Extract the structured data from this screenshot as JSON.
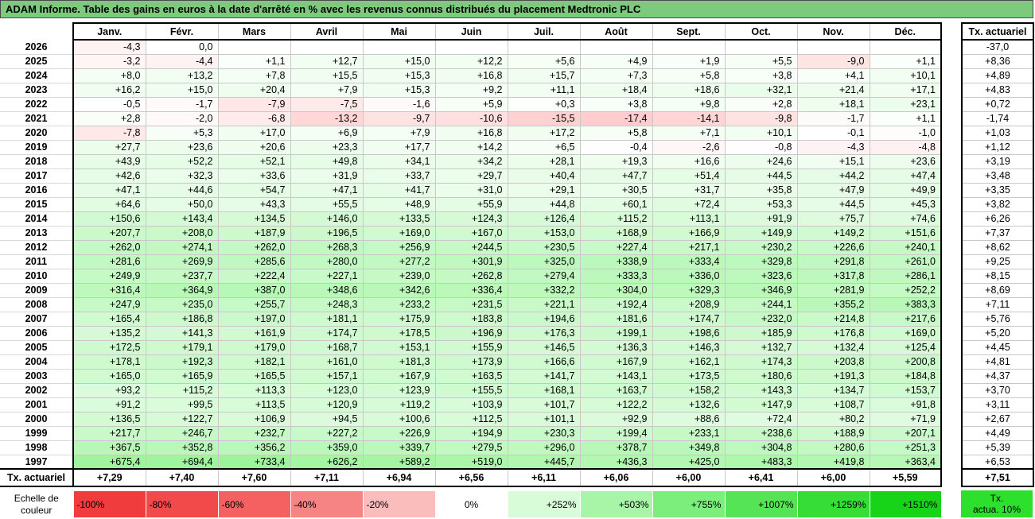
{
  "title": "ADAM Informe. Table des gains en euros à la date d'arrêté en % avec les revenus connus distribués du placement Medtronic PLC",
  "months": [
    "Janv.",
    "Févr.",
    "Mars",
    "Avril",
    "Mai",
    "Juin",
    "Juil.",
    "Août",
    "Sept.",
    "Oct.",
    "Nov.",
    "Déc."
  ],
  "side_header": "Tx. actuariel",
  "rows": [
    {
      "year": "2026",
      "values": [
        "-4,3",
        "0,0",
        "",
        "",
        "",
        "",
        "",
        "",
        "",
        "",
        "",
        ""
      ],
      "tx": "-37,0"
    },
    {
      "year": "2025",
      "values": [
        "-3,2",
        "-4,4",
        "+1,1",
        "+12,7",
        "+15,0",
        "+12,2",
        "+5,6",
        "+4,9",
        "+1,9",
        "+5,5",
        "-9,0",
        "+1,1"
      ],
      "tx": "+8,36"
    },
    {
      "year": "2024",
      "values": [
        "+8,0",
        "+13,2",
        "+7,8",
        "+15,5",
        "+15,3",
        "+16,8",
        "+15,7",
        "+7,3",
        "+5,8",
        "+3,8",
        "+4,1",
        "+10,1"
      ],
      "tx": "+4,89"
    },
    {
      "year": "2023",
      "values": [
        "+16,2",
        "+15,0",
        "+20,4",
        "+7,9",
        "+15,3",
        "+9,2",
        "+11,1",
        "+18,4",
        "+18,6",
        "+32,1",
        "+21,4",
        "+17,1"
      ],
      "tx": "+4,83"
    },
    {
      "year": "2022",
      "values": [
        "-0,5",
        "-1,7",
        "-7,9",
        "-7,5",
        "-1,6",
        "+5,9",
        "+0,3",
        "+3,8",
        "+9,8",
        "+2,8",
        "+18,1",
        "+23,1"
      ],
      "tx": "+0,72"
    },
    {
      "year": "2021",
      "values": [
        "+2,8",
        "-2,0",
        "-6,8",
        "-13,2",
        "-9,7",
        "-10,6",
        "-15,5",
        "-17,4",
        "-14,1",
        "-9,8",
        "-1,7",
        "+1,1"
      ],
      "tx": "-1,74"
    },
    {
      "year": "2020",
      "values": [
        "-7,8",
        "+5,3",
        "+17,0",
        "+6,9",
        "+7,9",
        "+16,8",
        "+17,2",
        "+5,8",
        "+7,1",
        "+10,1",
        "-0,1",
        "-1,0"
      ],
      "tx": "+1,03"
    },
    {
      "year": "2019",
      "values": [
        "+27,7",
        "+23,6",
        "+20,6",
        "+23,3",
        "+17,7",
        "+14,2",
        "+6,5",
        "-0,4",
        "-2,6",
        "-0,8",
        "-4,3",
        "-4,8"
      ],
      "tx": "+1,12"
    },
    {
      "year": "2018",
      "values": [
        "+43,9",
        "+52,2",
        "+52,1",
        "+49,8",
        "+34,1",
        "+34,2",
        "+28,1",
        "+19,3",
        "+16,6",
        "+24,6",
        "+15,1",
        "+23,6"
      ],
      "tx": "+3,19"
    },
    {
      "year": "2017",
      "values": [
        "+42,6",
        "+32,3",
        "+33,6",
        "+31,9",
        "+33,7",
        "+29,7",
        "+40,4",
        "+47,7",
        "+51,4",
        "+44,5",
        "+44,2",
        "+47,4"
      ],
      "tx": "+3,48"
    },
    {
      "year": "2016",
      "values": [
        "+47,1",
        "+44,6",
        "+54,7",
        "+47,1",
        "+41,7",
        "+31,0",
        "+29,1",
        "+30,5",
        "+31,7",
        "+35,8",
        "+47,9",
        "+49,9"
      ],
      "tx": "+3,35"
    },
    {
      "year": "2015",
      "values": [
        "+64,6",
        "+50,0",
        "+43,3",
        "+55,5",
        "+48,9",
        "+55,9",
        "+44,8",
        "+60,1",
        "+72,4",
        "+53,3",
        "+44,5",
        "+45,3"
      ],
      "tx": "+3,82"
    },
    {
      "year": "2014",
      "values": [
        "+150,6",
        "+143,4",
        "+134,5",
        "+146,0",
        "+133,5",
        "+124,3",
        "+126,4",
        "+115,2",
        "+113,1",
        "+91,9",
        "+75,7",
        "+74,6"
      ],
      "tx": "+6,26"
    },
    {
      "year": "2013",
      "values": [
        "+207,7",
        "+208,0",
        "+187,9",
        "+196,5",
        "+169,0",
        "+167,0",
        "+153,0",
        "+168,9",
        "+166,9",
        "+149,9",
        "+149,2",
        "+151,6"
      ],
      "tx": "+7,37"
    },
    {
      "year": "2012",
      "values": [
        "+262,0",
        "+274,1",
        "+262,0",
        "+268,3",
        "+256,9",
        "+244,5",
        "+230,5",
        "+227,4",
        "+217,1",
        "+230,2",
        "+226,6",
        "+240,1"
      ],
      "tx": "+8,62"
    },
    {
      "year": "2011",
      "values": [
        "+281,6",
        "+269,9",
        "+285,6",
        "+280,0",
        "+277,2",
        "+301,9",
        "+325,0",
        "+338,9",
        "+333,4",
        "+329,8",
        "+291,8",
        "+261,0"
      ],
      "tx": "+9,25"
    },
    {
      "year": "2010",
      "values": [
        "+249,9",
        "+237,7",
        "+222,4",
        "+227,1",
        "+239,0",
        "+262,8",
        "+279,4",
        "+333,3",
        "+336,0",
        "+323,6",
        "+317,8",
        "+286,1"
      ],
      "tx": "+8,15"
    },
    {
      "year": "2009",
      "values": [
        "+316,4",
        "+364,9",
        "+387,0",
        "+348,6",
        "+342,6",
        "+336,4",
        "+332,2",
        "+304,0",
        "+329,3",
        "+346,9",
        "+281,9",
        "+252,2"
      ],
      "tx": "+8,69"
    },
    {
      "year": "2008",
      "values": [
        "+247,9",
        "+235,0",
        "+255,7",
        "+248,3",
        "+233,2",
        "+231,5",
        "+221,1",
        "+192,4",
        "+208,9",
        "+244,1",
        "+355,2",
        "+383,3"
      ],
      "tx": "+7,11"
    },
    {
      "year": "2007",
      "values": [
        "+165,4",
        "+186,8",
        "+197,0",
        "+181,1",
        "+175,9",
        "+183,8",
        "+194,6",
        "+181,6",
        "+174,7",
        "+232,0",
        "+214,8",
        "+217,6"
      ],
      "tx": "+5,76"
    },
    {
      "year": "2006",
      "values": [
        "+135,2",
        "+141,3",
        "+161,9",
        "+174,7",
        "+178,5",
        "+196,9",
        "+176,3",
        "+199,1",
        "+198,6",
        "+185,9",
        "+176,8",
        "+169,0"
      ],
      "tx": "+5,20"
    },
    {
      "year": "2005",
      "values": [
        "+172,5",
        "+179,1",
        "+179,0",
        "+168,7",
        "+153,1",
        "+155,9",
        "+146,5",
        "+136,3",
        "+146,3",
        "+132,7",
        "+132,4",
        "+125,4"
      ],
      "tx": "+4,45"
    },
    {
      "year": "2004",
      "values": [
        "+178,1",
        "+192,3",
        "+182,1",
        "+161,0",
        "+181,3",
        "+173,9",
        "+166,6",
        "+167,9",
        "+162,1",
        "+174,3",
        "+203,8",
        "+200,8"
      ],
      "tx": "+4,81"
    },
    {
      "year": "2003",
      "values": [
        "+165,0",
        "+165,9",
        "+165,5",
        "+157,1",
        "+167,9",
        "+163,5",
        "+141,7",
        "+143,1",
        "+173,5",
        "+180,6",
        "+191,3",
        "+184,8"
      ],
      "tx": "+4,37"
    },
    {
      "year": "2002",
      "values": [
        "+93,2",
        "+115,2",
        "+113,3",
        "+123,0",
        "+123,9",
        "+155,5",
        "+168,1",
        "+163,7",
        "+158,2",
        "+143,3",
        "+134,7",
        "+153,7"
      ],
      "tx": "+3,70"
    },
    {
      "year": "2001",
      "values": [
        "+91,2",
        "+99,5",
        "+113,5",
        "+120,9",
        "+119,2",
        "+103,9",
        "+101,7",
        "+122,2",
        "+132,6",
        "+147,9",
        "+108,7",
        "+91,8"
      ],
      "tx": "+3,11"
    },
    {
      "year": "2000",
      "values": [
        "+136,5",
        "+122,7",
        "+106,9",
        "+94,5",
        "+100,6",
        "+112,5",
        "+101,1",
        "+92,9",
        "+88,6",
        "+72,4",
        "+80,2",
        "+71,9"
      ],
      "tx": "+2,67"
    },
    {
      "year": "1999",
      "values": [
        "+217,7",
        "+246,7",
        "+232,7",
        "+227,2",
        "+226,9",
        "+194,9",
        "+230,3",
        "+199,4",
        "+233,1",
        "+238,6",
        "+188,9",
        "+207,1"
      ],
      "tx": "+4,49"
    },
    {
      "year": "1998",
      "values": [
        "+367,5",
        "+352,8",
        "+356,2",
        "+359,0",
        "+339,7",
        "+279,5",
        "+296,0",
        "+378,7",
        "+349,8",
        "+304,8",
        "+280,6",
        "+251,3"
      ],
      "tx": "+5,39"
    },
    {
      "year": "1997",
      "values": [
        "+675,4",
        "+694,4",
        "+733,4",
        "+626,2",
        "+589,2",
        "+519,0",
        "+445,7",
        "+436,3",
        "+425,0",
        "+483,3",
        "+419,8",
        "+363,4"
      ],
      "tx": "+6,53"
    }
  ],
  "footer": {
    "label": "Tx. actuariel",
    "values": [
      "+7,29",
      "+7,40",
      "+7,60",
      "+7,11",
      "+6,94",
      "+6,56",
      "+6,11",
      "+6,06",
      "+6,00",
      "+6,41",
      "+6,00",
      "+5,59"
    ],
    "tx": "+7,51"
  },
  "scale": {
    "label_line1": "Echelle de",
    "label_line2": "couleur",
    "items": [
      {
        "text": "-100%",
        "color": "#f03c3c",
        "align": "left"
      },
      {
        "text": "-80%",
        "color": "#f24a4a",
        "align": "left"
      },
      {
        "text": "-60%",
        "color": "#f56060",
        "align": "left"
      },
      {
        "text": "-40%",
        "color": "#f78484",
        "align": "left"
      },
      {
        "text": "-20%",
        "color": "#fbbcbc",
        "align": "left"
      },
      {
        "text": "0%",
        "color": "#ffffff",
        "align": "center"
      },
      {
        "text": "+252%",
        "color": "#d8fcd8",
        "align": "right"
      },
      {
        "text": "+503%",
        "color": "#a8f5a8",
        "align": "right"
      },
      {
        "text": "+755%",
        "color": "#7cee7c",
        "align": "right"
      },
      {
        "text": "+1007%",
        "color": "#55e455",
        "align": "right"
      },
      {
        "text": "+1259%",
        "color": "#36dd36",
        "align": "right"
      },
      {
        "text": "+1510%",
        "color": "#18d418",
        "align": "right"
      }
    ],
    "side_line1": "Tx.",
    "side_line2": "actua. 10%"
  }
}
